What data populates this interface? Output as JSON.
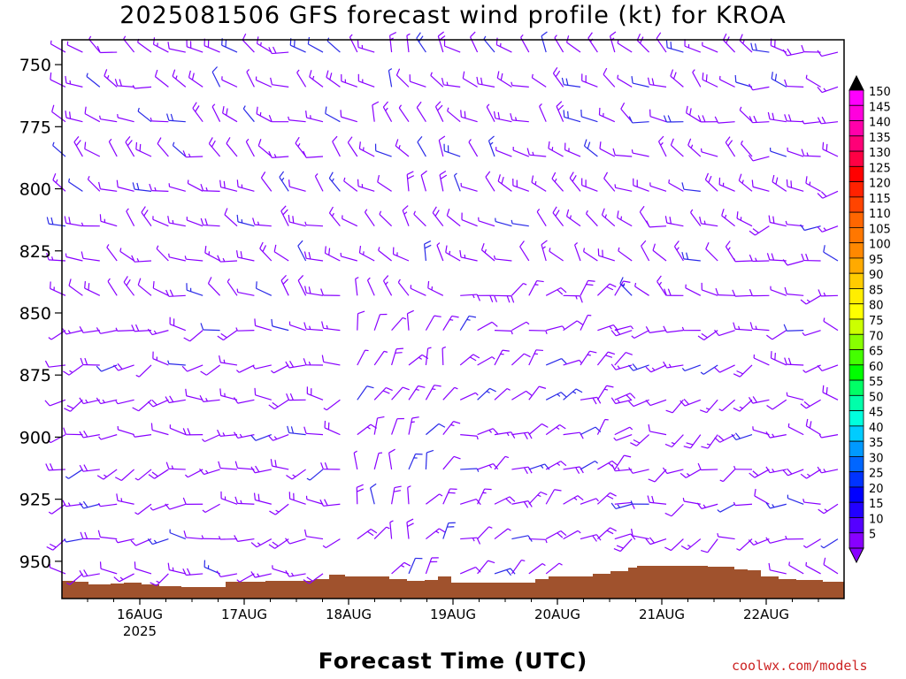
{
  "chart_data": {
    "type": "wind_barb_profile",
    "title": "2025081506 GFS forecast wind profile (kt) for KROA",
    "xlabel": "Forecast Time (UTC)",
    "ylim": [
      965,
      740
    ],
    "y_ticks": [
      "750",
      "775",
      "800",
      "825",
      "850",
      "875",
      "900",
      "925",
      "950"
    ],
    "x_ticks": [
      {
        "label": "16AUG",
        "sublabel": "2025"
      },
      {
        "label": "17AUG",
        "sublabel": ""
      },
      {
        "label": "18AUG",
        "sublabel": ""
      },
      {
        "label": "19AUG",
        "sublabel": ""
      },
      {
        "label": "20AUG",
        "sublabel": ""
      },
      {
        "label": "21AUG",
        "sublabel": ""
      },
      {
        "label": "22AUG",
        "sublabel": ""
      }
    ],
    "colorbar": {
      "units": "kt",
      "labels": [
        "150",
        "145",
        "140",
        "135",
        "130",
        "125",
        "120",
        "115",
        "110",
        "105",
        "100",
        "95",
        "90",
        "85",
        "80",
        "75",
        "70",
        "65",
        "60",
        "55",
        "50",
        "45",
        "40",
        "35",
        "30",
        "25",
        "20",
        "15",
        "10",
        "5"
      ],
      "colors": [
        "#ff00ff",
        "#ff00dd",
        "#ff00aa",
        "#ff0077",
        "#ff0044",
        "#ff0000",
        "#ff2200",
        "#ff4400",
        "#ff6600",
        "#ff7700",
        "#ff8800",
        "#ffaa00",
        "#ffcc00",
        "#ffee00",
        "#ffff00",
        "#ccff00",
        "#88ff00",
        "#44ff00",
        "#00ff00",
        "#00ff66",
        "#00ffaa",
        "#00ffdd",
        "#00ccff",
        "#0099ff",
        "#0066ff",
        "#0033ff",
        "#0000ff",
        "#2200ff",
        "#5500ff",
        "#8800ff"
      ]
    },
    "terrain_color": "#a0522d",
    "barb_color": "#8800ff",
    "barb_color_strong": "#2a2ae8"
  },
  "credit": "coolwx.com/models"
}
